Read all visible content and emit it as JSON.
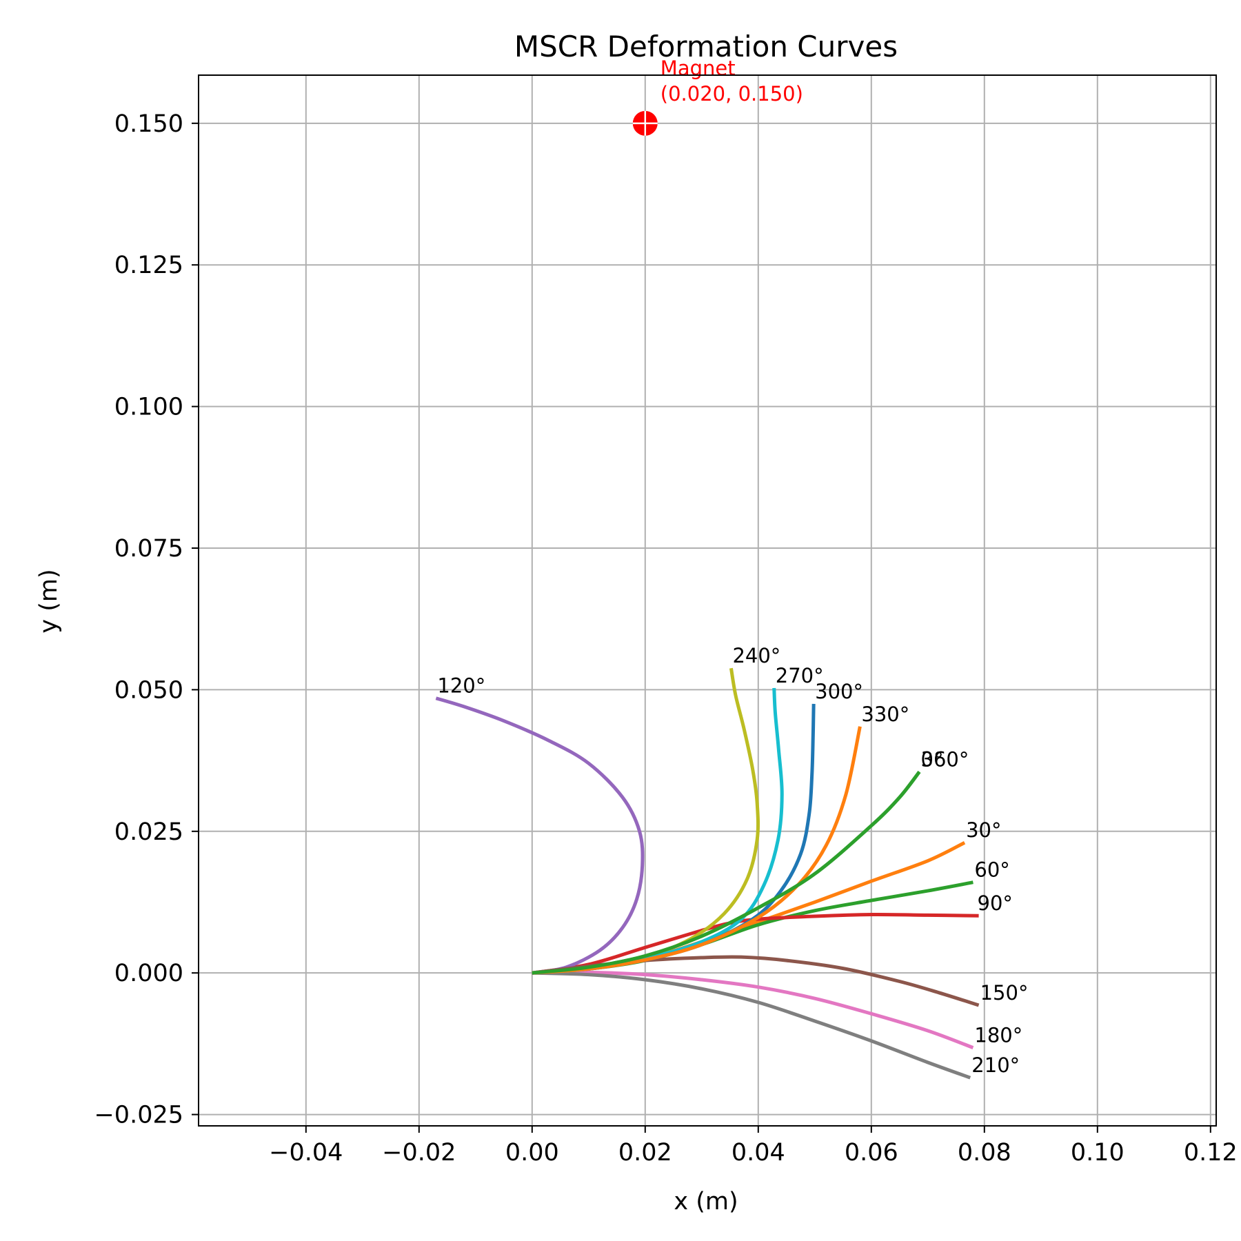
{
  "chart_data": {
    "type": "line",
    "title": "MSCR Deformation Curves",
    "xlabel": "x (m)",
    "ylabel": "y (m)",
    "xlim": [
      -0.059,
      0.121
    ],
    "ylim": [
      -0.027,
      0.1585
    ],
    "grid": true,
    "x_ticks": [
      -0.04,
      -0.02,
      0.0,
      0.02,
      0.04,
      0.06,
      0.08,
      0.1,
      0.12
    ],
    "x_tick_labels": [
      "−0.04",
      "−0.02",
      "0.00",
      "0.02",
      "0.04",
      "0.06",
      "0.08",
      "0.10",
      "0.12"
    ],
    "y_ticks": [
      -0.025,
      0.0,
      0.025,
      0.05,
      0.075,
      0.1,
      0.125,
      0.15
    ],
    "y_tick_labels": [
      "−0.025",
      "0.000",
      "0.025",
      "0.050",
      "0.075",
      "0.100",
      "0.125",
      "0.150"
    ],
    "magnet": {
      "x": 0.02,
      "y": 0.15,
      "label_line1": "Magnet",
      "label_line2": "(0.020, 0.150)",
      "color": "#ff0000"
    },
    "series": [
      {
        "name": "0°",
        "color": "#2ca02c",
        "points": [
          [
            0,
            0
          ],
          [
            0.01,
            0.001
          ],
          [
            0.02,
            0.003
          ],
          [
            0.03,
            0.0065
          ],
          [
            0.04,
            0.0115
          ],
          [
            0.05,
            0.0175
          ],
          [
            0.06,
            0.026
          ],
          [
            0.065,
            0.031
          ],
          [
            0.0685,
            0.0355
          ]
        ]
      },
      {
        "name": "30°",
        "color": "#ff7f0e",
        "points": [
          [
            0,
            0
          ],
          [
            0.01,
            0.0008
          ],
          [
            0.02,
            0.0025
          ],
          [
            0.03,
            0.0055
          ],
          [
            0.04,
            0.009
          ],
          [
            0.05,
            0.0125
          ],
          [
            0.06,
            0.0162
          ],
          [
            0.07,
            0.0198
          ],
          [
            0.0765,
            0.023
          ]
        ]
      },
      {
        "name": "60°",
        "color": "#2ca02c",
        "points": [
          [
            0,
            0
          ],
          [
            0.01,
            0.0007
          ],
          [
            0.02,
            0.0022
          ],
          [
            0.03,
            0.005
          ],
          [
            0.04,
            0.0085
          ],
          [
            0.05,
            0.011
          ],
          [
            0.06,
            0.0128
          ],
          [
            0.07,
            0.0145
          ],
          [
            0.078,
            0.016
          ]
        ]
      },
      {
        "name": "90°",
        "color": "#d62728",
        "points": [
          [
            0,
            0
          ],
          [
            0.01,
            0.0015
          ],
          [
            0.02,
            0.0045
          ],
          [
            0.03,
            0.0075
          ],
          [
            0.035,
            0.0088
          ],
          [
            0.04,
            0.0095
          ],
          [
            0.05,
            0.01
          ],
          [
            0.06,
            0.0103
          ],
          [
            0.07,
            0.0102
          ],
          [
            0.079,
            0.0101
          ]
        ]
      },
      {
        "name": "120°",
        "color": "#9467bd",
        "points": [
          [
            0,
            0
          ],
          [
            0.006,
            0.001
          ],
          [
            0.012,
            0.004
          ],
          [
            0.016,
            0.008
          ],
          [
            0.0185,
            0.013
          ],
          [
            0.0195,
            0.019
          ],
          [
            0.019,
            0.025
          ],
          [
            0.016,
            0.031
          ],
          [
            0.01,
            0.037
          ],
          [
            0.003,
            0.041
          ],
          [
            -0.005,
            0.0445
          ],
          [
            -0.012,
            0.047
          ],
          [
            -0.017,
            0.0485
          ]
        ]
      },
      {
        "name": "150°",
        "color": "#8c564b",
        "points": [
          [
            0,
            0
          ],
          [
            0.01,
            0.0012
          ],
          [
            0.02,
            0.0022
          ],
          [
            0.03,
            0.0027
          ],
          [
            0.037,
            0.0028
          ],
          [
            0.045,
            0.0022
          ],
          [
            0.055,
            0.0008
          ],
          [
            0.065,
            -0.0015
          ],
          [
            0.072,
            -0.0035
          ],
          [
            0.079,
            -0.0057
          ]
        ]
      },
      {
        "name": "180°",
        "color": "#e377c2",
        "points": [
          [
            0,
            0
          ],
          [
            0.01,
            0.0001
          ],
          [
            0.02,
            -0.0003
          ],
          [
            0.03,
            -0.0012
          ],
          [
            0.04,
            -0.0025
          ],
          [
            0.05,
            -0.0045
          ],
          [
            0.06,
            -0.0072
          ],
          [
            0.07,
            -0.0102
          ],
          [
            0.078,
            -0.0132
          ]
        ]
      },
      {
        "name": "210°",
        "color": "#7f7f7f",
        "points": [
          [
            0,
            0
          ],
          [
            0.01,
            -0.0003
          ],
          [
            0.02,
            -0.0012
          ],
          [
            0.03,
            -0.0028
          ],
          [
            0.04,
            -0.0052
          ],
          [
            0.05,
            -0.0085
          ],
          [
            0.06,
            -0.012
          ],
          [
            0.07,
            -0.0158
          ],
          [
            0.0775,
            -0.0185
          ]
        ]
      },
      {
        "name": "240°",
        "color": "#bcbd22",
        "points": [
          [
            0,
            0
          ],
          [
            0.01,
            0.0008
          ],
          [
            0.02,
            0.0028
          ],
          [
            0.028,
            0.006
          ],
          [
            0.034,
            0.0105
          ],
          [
            0.038,
            0.0165
          ],
          [
            0.0398,
            0.0235
          ],
          [
            0.0398,
            0.03
          ],
          [
            0.039,
            0.036
          ],
          [
            0.0375,
            0.043
          ],
          [
            0.036,
            0.049
          ],
          [
            0.0352,
            0.0538
          ]
        ]
      },
      {
        "name": "270°",
        "color": "#17becf",
        "points": [
          [
            0,
            0
          ],
          [
            0.01,
            0.0007
          ],
          [
            0.02,
            0.0025
          ],
          [
            0.03,
            0.0055
          ],
          [
            0.037,
            0.0095
          ],
          [
            0.041,
            0.0155
          ],
          [
            0.0435,
            0.0235
          ],
          [
            0.0442,
            0.0315
          ],
          [
            0.0436,
            0.0395
          ],
          [
            0.043,
            0.046
          ],
          [
            0.0428,
            0.0503
          ]
        ]
      },
      {
        "name": "300°",
        "color": "#1f77b4",
        "points": [
          [
            0,
            0
          ],
          [
            0.01,
            0.0007
          ],
          [
            0.02,
            0.0023
          ],
          [
            0.03,
            0.005
          ],
          [
            0.039,
            0.0095
          ],
          [
            0.044,
            0.0145
          ],
          [
            0.0475,
            0.021
          ],
          [
            0.049,
            0.028
          ],
          [
            0.0495,
            0.035
          ],
          [
            0.0497,
            0.042
          ],
          [
            0.0498,
            0.0475
          ]
        ]
      },
      {
        "name": "330°",
        "color": "#ff7f0e",
        "points": [
          [
            0,
            0
          ],
          [
            0.01,
            0.0007
          ],
          [
            0.02,
            0.0023
          ],
          [
            0.03,
            0.005
          ],
          [
            0.04,
            0.0098
          ],
          [
            0.047,
            0.0155
          ],
          [
            0.052,
            0.0225
          ],
          [
            0.0555,
            0.0315
          ],
          [
            0.058,
            0.0435
          ]
        ]
      },
      {
        "name": "360°",
        "color": "#2ca02c",
        "points": [
          [
            0,
            0
          ],
          [
            0.01,
            0.001
          ],
          [
            0.02,
            0.003
          ],
          [
            0.03,
            0.0065
          ],
          [
            0.04,
            0.0115
          ],
          [
            0.05,
            0.0175
          ],
          [
            0.06,
            0.026
          ],
          [
            0.065,
            0.031
          ],
          [
            0.0685,
            0.0355
          ]
        ]
      }
    ],
    "label_positions_data": {
      "0°": [
        0.0685,
        0.0355
      ],
      "30°": [
        0.0765,
        0.023
      ],
      "60°": [
        0.078,
        0.016
      ],
      "90°": [
        0.0785,
        0.0101
      ],
      "120°": [
        -0.017,
        0.0485
      ],
      "150°": [
        0.079,
        -0.0057
      ],
      "180°": [
        0.078,
        -0.0132
      ],
      "210°": [
        0.0775,
        -0.0185
      ],
      "240°": [
        0.0352,
        0.0538
      ],
      "270°": [
        0.0428,
        0.0503
      ],
      "300°": [
        0.0498,
        0.0475
      ],
      "330°": [
        0.058,
        0.0435
      ],
      "360°": [
        0.0685,
        0.0355
      ]
    }
  }
}
